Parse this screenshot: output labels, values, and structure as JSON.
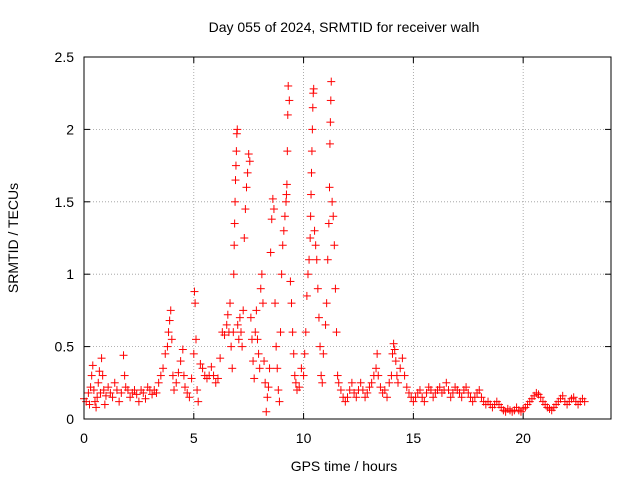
{
  "chart_data": {
    "type": "scatter",
    "title": "Day 055 of 2024, SRMTID for receiver walh",
    "xlabel": "GPS time / hours",
    "ylabel": "SRMTID / TECUs",
    "xlim": [
      0,
      24
    ],
    "ylim": [
      0,
      2.5
    ],
    "xticks": [
      0,
      5,
      10,
      15,
      20
    ],
    "yticks": [
      0,
      0.5,
      1,
      1.5,
      2,
      2.5
    ],
    "xtick_labels": [
      "0",
      "5",
      "10",
      "15",
      "20"
    ],
    "ytick_labels": [
      "0",
      "0.5",
      "1",
      "1.5",
      "2",
      "2.5"
    ],
    "grid": true,
    "marker": "+",
    "color": "#ff0000",
    "series": [
      {
        "name": "SRMTID",
        "points": [
          [
            0.0,
            0.14
          ],
          [
            0.1,
            0.12
          ],
          [
            0.2,
            0.18
          ],
          [
            0.25,
            0.1
          ],
          [
            0.3,
            0.22
          ],
          [
            0.35,
            0.3
          ],
          [
            0.4,
            0.37
          ],
          [
            0.45,
            0.2
          ],
          [
            0.5,
            0.12
          ],
          [
            0.55,
            0.08
          ],
          [
            0.6,
            0.15
          ],
          [
            0.65,
            0.25
          ],
          [
            0.7,
            0.33
          ],
          [
            0.75,
            0.18
          ],
          [
            0.8,
            0.42
          ],
          [
            0.85,
            0.3
          ],
          [
            0.9,
            0.2
          ],
          [
            0.95,
            0.1
          ],
          [
            1.0,
            0.16
          ],
          [
            1.1,
            0.22
          ],
          [
            1.2,
            0.18
          ],
          [
            1.3,
            0.15
          ],
          [
            1.4,
            0.25
          ],
          [
            1.5,
            0.2
          ],
          [
            1.6,
            0.12
          ],
          [
            1.7,
            0.18
          ],
          [
            1.8,
            0.44
          ],
          [
            1.85,
            0.3
          ],
          [
            1.9,
            0.22
          ],
          [
            2.0,
            0.2
          ],
          [
            2.1,
            0.15
          ],
          [
            2.2,
            0.18
          ],
          [
            2.3,
            0.2
          ],
          [
            2.4,
            0.17
          ],
          [
            2.5,
            0.12
          ],
          [
            2.6,
            0.2
          ],
          [
            2.7,
            0.18
          ],
          [
            2.8,
            0.14
          ],
          [
            2.9,
            0.22
          ],
          [
            3.0,
            0.2
          ],
          [
            3.1,
            0.17
          ],
          [
            3.2,
            0.2
          ],
          [
            3.3,
            0.18
          ],
          [
            3.4,
            0.25
          ],
          [
            3.5,
            0.3
          ],
          [
            3.6,
            0.35
          ],
          [
            3.7,
            0.45
          ],
          [
            3.8,
            0.5
          ],
          [
            3.85,
            0.6
          ],
          [
            3.9,
            0.68
          ],
          [
            3.95,
            0.75
          ],
          [
            4.0,
            0.55
          ],
          [
            4.05,
            0.3
          ],
          [
            4.1,
            0.2
          ],
          [
            4.2,
            0.25
          ],
          [
            4.3,
            0.32
          ],
          [
            4.4,
            0.4
          ],
          [
            4.5,
            0.48
          ],
          [
            4.55,
            0.3
          ],
          [
            4.6,
            0.22
          ],
          [
            4.7,
            0.18
          ],
          [
            4.8,
            0.15
          ],
          [
            4.9,
            0.28
          ],
          [
            5.0,
            0.45
          ],
          [
            5.03,
            0.88
          ],
          [
            5.06,
            0.8
          ],
          [
            5.1,
            0.55
          ],
          [
            5.15,
            0.2
          ],
          [
            5.2,
            0.12
          ],
          [
            5.3,
            0.38
          ],
          [
            5.4,
            0.35
          ],
          [
            5.5,
            0.3
          ],
          [
            5.6,
            0.28
          ],
          [
            5.7,
            0.3
          ],
          [
            5.8,
            0.36
          ],
          [
            5.9,
            0.3
          ],
          [
            6.0,
            0.25
          ],
          [
            6.1,
            0.28
          ],
          [
            6.2,
            0.42
          ],
          [
            6.3,
            0.6
          ],
          [
            6.4,
            0.58
          ],
          [
            6.5,
            0.65
          ],
          [
            6.55,
            0.72
          ],
          [
            6.6,
            0.6
          ],
          [
            6.65,
            0.8
          ],
          [
            6.7,
            0.5
          ],
          [
            6.75,
            0.35
          ],
          [
            6.8,
            0.6
          ],
          [
            6.82,
            1.0
          ],
          [
            6.84,
            1.2
          ],
          [
            6.86,
            1.35
          ],
          [
            6.88,
            1.5
          ],
          [
            6.9,
            1.65
          ],
          [
            6.92,
            1.75
          ],
          [
            6.94,
            1.85
          ],
          [
            6.96,
            1.97
          ],
          [
            6.98,
            2.0
          ],
          [
            7.0,
            0.65
          ],
          [
            7.05,
            0.55
          ],
          [
            7.1,
            0.7
          ],
          [
            7.15,
            0.6
          ],
          [
            7.2,
            0.5
          ],
          [
            7.25,
            0.75
          ],
          [
            7.3,
            1.25
          ],
          [
            7.35,
            1.45
          ],
          [
            7.4,
            1.6
          ],
          [
            7.45,
            1.7
          ],
          [
            7.5,
            1.83
          ],
          [
            7.55,
            1.78
          ],
          [
            7.6,
            0.7
          ],
          [
            7.65,
            0.55
          ],
          [
            7.7,
            0.4
          ],
          [
            7.75,
            0.28
          ],
          [
            7.8,
            0.6
          ],
          [
            7.85,
            0.75
          ],
          [
            7.9,
            0.55
          ],
          [
            7.95,
            0.45
          ],
          [
            8.0,
            0.35
          ],
          [
            8.05,
            0.9
          ],
          [
            8.1,
            1.0
          ],
          [
            8.15,
            0.8
          ],
          [
            8.2,
            0.4
          ],
          [
            8.25,
            0.25
          ],
          [
            8.3,
            0.05
          ],
          [
            8.35,
            0.15
          ],
          [
            8.4,
            0.22
          ],
          [
            8.45,
            0.35
          ],
          [
            8.5,
            1.15
          ],
          [
            8.55,
            1.38
          ],
          [
            8.6,
            1.52
          ],
          [
            8.65,
            1.45
          ],
          [
            8.7,
            0.8
          ],
          [
            8.75,
            0.5
          ],
          [
            8.8,
            0.35
          ],
          [
            8.85,
            0.2
          ],
          [
            8.9,
            0.12
          ],
          [
            8.95,
            0.6
          ],
          [
            9.0,
            1.0
          ],
          [
            9.05,
            1.2
          ],
          [
            9.1,
            1.3
          ],
          [
            9.15,
            1.4
          ],
          [
            9.2,
            1.5
          ],
          [
            9.22,
            1.55
          ],
          [
            9.24,
            1.62
          ],
          [
            9.26,
            1.85
          ],
          [
            9.28,
            2.1
          ],
          [
            9.3,
            2.3
          ],
          [
            9.35,
            2.2
          ],
          [
            9.4,
            0.95
          ],
          [
            9.45,
            0.8
          ],
          [
            9.5,
            0.6
          ],
          [
            9.55,
            0.45
          ],
          [
            9.6,
            0.3
          ],
          [
            9.65,
            0.25
          ],
          [
            9.7,
            0.2
          ],
          [
            9.8,
            0.22
          ],
          [
            9.9,
            0.35
          ],
          [
            10.0,
            0.3
          ],
          [
            10.05,
            0.45
          ],
          [
            10.1,
            0.6
          ],
          [
            10.15,
            0.85
          ],
          [
            10.2,
            1.0
          ],
          [
            10.25,
            1.1
          ],
          [
            10.3,
            1.25
          ],
          [
            10.32,
            1.4
          ],
          [
            10.34,
            1.55
          ],
          [
            10.36,
            1.7
          ],
          [
            10.38,
            1.85
          ],
          [
            10.4,
            2.0
          ],
          [
            10.42,
            2.15
          ],
          [
            10.44,
            2.25
          ],
          [
            10.46,
            2.28
          ],
          [
            10.5,
            1.3
          ],
          [
            10.55,
            1.2
          ],
          [
            10.6,
            1.1
          ],
          [
            10.65,
            0.9
          ],
          [
            10.7,
            0.7
          ],
          [
            10.75,
            0.5
          ],
          [
            10.8,
            0.3
          ],
          [
            10.85,
            0.25
          ],
          [
            10.9,
            0.45
          ],
          [
            11.0,
            0.65
          ],
          [
            11.05,
            0.8
          ],
          [
            11.1,
            1.1
          ],
          [
            11.15,
            1.35
          ],
          [
            11.18,
            1.6
          ],
          [
            11.2,
            1.9
          ],
          [
            11.22,
            2.05
          ],
          [
            11.24,
            2.2
          ],
          [
            11.26,
            2.33
          ],
          [
            11.3,
            1.5
          ],
          [
            11.35,
            1.4
          ],
          [
            11.4,
            1.2
          ],
          [
            11.45,
            0.9
          ],
          [
            11.5,
            0.6
          ],
          [
            11.55,
            0.3
          ],
          [
            11.6,
            0.25
          ],
          [
            11.7,
            0.2
          ],
          [
            11.8,
            0.15
          ],
          [
            11.9,
            0.12
          ],
          [
            12.0,
            0.15
          ],
          [
            12.1,
            0.2
          ],
          [
            12.2,
            0.25
          ],
          [
            12.3,
            0.18
          ],
          [
            12.4,
            0.15
          ],
          [
            12.5,
            0.2
          ],
          [
            12.6,
            0.25
          ],
          [
            12.7,
            0.2
          ],
          [
            12.8,
            0.15
          ],
          [
            12.9,
            0.18
          ],
          [
            13.0,
            0.22
          ],
          [
            13.1,
            0.25
          ],
          [
            13.2,
            0.3
          ],
          [
            13.3,
            0.35
          ],
          [
            13.35,
            0.45
          ],
          [
            13.4,
            0.3
          ],
          [
            13.5,
            0.22
          ],
          [
            13.6,
            0.18
          ],
          [
            13.7,
            0.2
          ],
          [
            13.8,
            0.15
          ],
          [
            13.9,
            0.25
          ],
          [
            14.0,
            0.3
          ],
          [
            14.05,
            0.45
          ],
          [
            14.1,
            0.52
          ],
          [
            14.15,
            0.48
          ],
          [
            14.2,
            0.4
          ],
          [
            14.25,
            0.3
          ],
          [
            14.3,
            0.25
          ],
          [
            14.4,
            0.35
          ],
          [
            14.5,
            0.42
          ],
          [
            14.6,
            0.3
          ],
          [
            14.7,
            0.22
          ],
          [
            14.8,
            0.18
          ],
          [
            14.9,
            0.15
          ],
          [
            15.0,
            0.12
          ],
          [
            15.1,
            0.15
          ],
          [
            15.2,
            0.18
          ],
          [
            15.3,
            0.2
          ],
          [
            15.4,
            0.15
          ],
          [
            15.5,
            0.12
          ],
          [
            15.6,
            0.18
          ],
          [
            15.7,
            0.22
          ],
          [
            15.8,
            0.2
          ],
          [
            15.9,
            0.15
          ],
          [
            16.0,
            0.18
          ],
          [
            16.1,
            0.2
          ],
          [
            16.2,
            0.22
          ],
          [
            16.3,
            0.18
          ],
          [
            16.4,
            0.2
          ],
          [
            16.5,
            0.25
          ],
          [
            16.6,
            0.2
          ],
          [
            16.7,
            0.15
          ],
          [
            16.8,
            0.18
          ],
          [
            16.9,
            0.22
          ],
          [
            17.0,
            0.2
          ],
          [
            17.1,
            0.18
          ],
          [
            17.2,
            0.15
          ],
          [
            17.3,
            0.2
          ],
          [
            17.4,
            0.22
          ],
          [
            17.5,
            0.18
          ],
          [
            17.6,
            0.15
          ],
          [
            17.7,
            0.12
          ],
          [
            17.8,
            0.15
          ],
          [
            17.9,
            0.18
          ],
          [
            18.0,
            0.2
          ],
          [
            18.1,
            0.15
          ],
          [
            18.2,
            0.12
          ],
          [
            18.3,
            0.1
          ],
          [
            18.4,
            0.12
          ],
          [
            18.5,
            0.1
          ],
          [
            18.6,
            0.08
          ],
          [
            18.7,
            0.1
          ],
          [
            18.8,
            0.12
          ],
          [
            18.9,
            0.1
          ],
          [
            19.0,
            0.08
          ],
          [
            19.1,
            0.06
          ],
          [
            19.2,
            0.05
          ],
          [
            19.3,
            0.07
          ],
          [
            19.4,
            0.06
          ],
          [
            19.5,
            0.05
          ],
          [
            19.6,
            0.06
          ],
          [
            19.7,
            0.08
          ],
          [
            19.8,
            0.06
          ],
          [
            19.9,
            0.05
          ],
          [
            20.0,
            0.07
          ],
          [
            20.1,
            0.08
          ],
          [
            20.2,
            0.1
          ],
          [
            20.3,
            0.12
          ],
          [
            20.4,
            0.14
          ],
          [
            20.5,
            0.16
          ],
          [
            20.6,
            0.18
          ],
          [
            20.7,
            0.17
          ],
          [
            20.8,
            0.15
          ],
          [
            20.9,
            0.12
          ],
          [
            21.0,
            0.1
          ],
          [
            21.1,
            0.08
          ],
          [
            21.2,
            0.07
          ],
          [
            21.3,
            0.06
          ],
          [
            21.4,
            0.08
          ],
          [
            21.5,
            0.1
          ],
          [
            21.6,
            0.12
          ],
          [
            21.7,
            0.14
          ],
          [
            21.8,
            0.16
          ],
          [
            21.9,
            0.12
          ],
          [
            22.0,
            0.1
          ],
          [
            22.1,
            0.12
          ],
          [
            22.2,
            0.14
          ],
          [
            22.3,
            0.15
          ],
          [
            22.4,
            0.12
          ],
          [
            22.5,
            0.1
          ],
          [
            22.6,
            0.12
          ],
          [
            22.7,
            0.14
          ],
          [
            22.8,
            0.12
          ]
        ]
      }
    ]
  }
}
